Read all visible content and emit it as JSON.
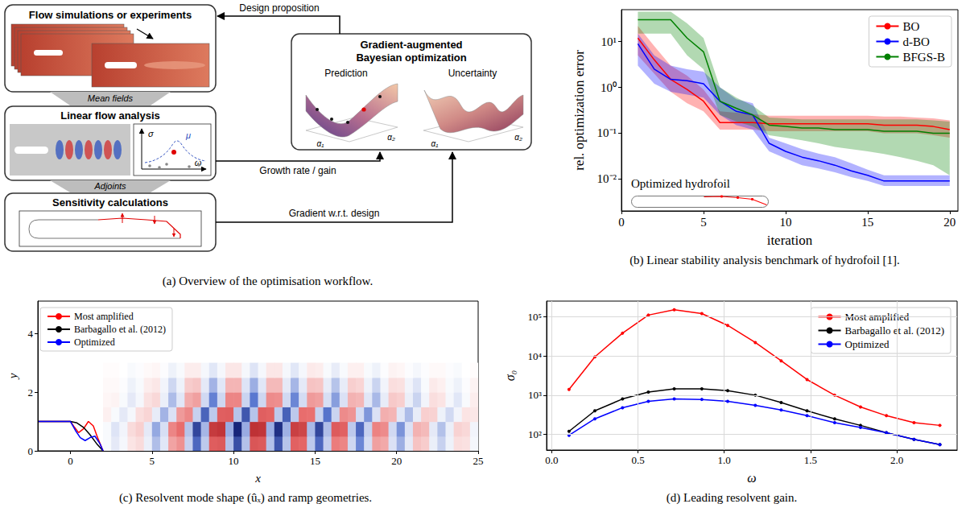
{
  "diagram": {
    "caption": "(a) Overview of the optimisation workflow.",
    "boxes": {
      "simulations": "Flow simulations or experiments",
      "linear": "Linear flow analysis",
      "sensitivity": "Sensitivity calculations",
      "optimization": "Gradient-augmented Bayesian optimization"
    },
    "transitions": {
      "mean_fields": "Mean fields",
      "adjoints": "Adjoints"
    },
    "arrows": {
      "design": "Design proposition",
      "growth": "Growth rate / gain",
      "gradient": "Gradient w.r.t. design"
    },
    "panels": {
      "prediction": "Prediction",
      "uncertainty": "Uncertainty"
    },
    "symbols": {
      "growth_rate": "σ",
      "frequency": "ω",
      "mean": "μ",
      "param1": "α₁",
      "param2": "α₂"
    }
  },
  "chart_data": [
    {
      "type": "line",
      "caption": "(b) Linear stability analysis benchmark of hydrofoil [1].",
      "x_label": "iteration",
      "y_label": "rel. optimization error",
      "annotation": "Optimized hydrofoil",
      "x": [
        1,
        2,
        3,
        4,
        5,
        6,
        7,
        8,
        9,
        10,
        11,
        12,
        13,
        14,
        15,
        16,
        17,
        18,
        19,
        20
      ],
      "series": [
        {
          "name": "BO",
          "color": "#ff0000",
          "values": [
            12,
            4,
            1.5,
            0.9,
            0.5,
            0.17,
            0.17,
            0.17,
            0.16,
            0.16,
            0.16,
            0.16,
            0.16,
            0.16,
            0.16,
            0.15,
            0.15,
            0.15,
            0.14,
            0.12
          ],
          "lower": [
            5,
            2,
            0.8,
            0.45,
            0.3,
            0.12,
            0.12,
            0.12,
            0.11,
            0.11,
            0.11,
            0.11,
            0.11,
            0.11,
            0.11,
            0.1,
            0.1,
            0.1,
            0.09,
            0.08
          ],
          "upper": [
            22,
            8,
            3,
            1.8,
            0.9,
            0.3,
            0.28,
            0.26,
            0.24,
            0.24,
            0.24,
            0.24,
            0.24,
            0.24,
            0.24,
            0.23,
            0.23,
            0.22,
            0.21,
            0.19
          ]
        },
        {
          "name": "d-BO",
          "color": "#0000ff",
          "values": [
            9,
            2.5,
            1.5,
            1.4,
            1.2,
            0.5,
            0.3,
            0.25,
            0.06,
            0.04,
            0.03,
            0.025,
            0.02,
            0.015,
            0.012,
            0.009,
            0.009,
            0.009,
            0.009,
            0.009
          ],
          "lower": [
            3,
            1.2,
            0.8,
            0.7,
            0.6,
            0.25,
            0.15,
            0.12,
            0.04,
            0.028,
            0.02,
            0.017,
            0.014,
            0.011,
            0.009,
            0.007,
            0.007,
            0.007,
            0.007,
            0.007
          ],
          "upper": [
            15,
            5,
            3,
            2.5,
            2.2,
            1,
            0.55,
            0.45,
            0.08,
            0.06,
            0.045,
            0.036,
            0.03,
            0.022,
            0.016,
            0.012,
            0.012,
            0.012,
            0.012,
            0.012
          ]
        },
        {
          "name": "BFGS-B",
          "color": "#008000",
          "values": [
            30,
            30,
            30,
            12,
            6,
            0.5,
            0.35,
            0.25,
            0.15,
            0.14,
            0.13,
            0.13,
            0.12,
            0.12,
            0.12,
            0.11,
            0.11,
            0.11,
            0.1,
            0.1
          ],
          "lower": [
            15,
            15,
            15,
            5,
            2.5,
            0.25,
            0.18,
            0.14,
            0.09,
            0.08,
            0.07,
            0.06,
            0.05,
            0.045,
            0.04,
            0.035,
            0.03,
            0.025,
            0.02,
            0.012
          ],
          "upper": [
            45,
            45,
            45,
            25,
            12,
            1,
            0.6,
            0.4,
            0.22,
            0.21,
            0.2,
            0.2,
            0.2,
            0.2,
            0.2,
            0.2,
            0.2,
            0.2,
            0.19,
            0.18
          ]
        }
      ],
      "xlim": [
        0,
        20.5
      ],
      "xticks": [
        0,
        5,
        10,
        15,
        20
      ],
      "ylim": [
        0.002,
        50
      ],
      "yticks": [
        {
          "value": 0.01,
          "label": "10⁻²"
        },
        {
          "value": 0.1,
          "label": "10⁻¹"
        },
        {
          "value": 1,
          "label": "10⁰"
        },
        {
          "value": 10,
          "label": "10¹"
        }
      ],
      "log": "y",
      "grid": false,
      "legend": "upper right",
      "marker": "none",
      "line_style": "solid"
    },
    {
      "type": "heatmap",
      "caption": "(c) Resolvent mode shape (ûₓ) and ramp geometries.",
      "x_label": "x",
      "y_label": "y",
      "cells": {
        "x": [
          2.25,
          2.75,
          3.25,
          3.75,
          4.25,
          4.75,
          5.25,
          5.75,
          6.25,
          6.75,
          7.25,
          7.75,
          8.25,
          8.75,
          9.25,
          9.75,
          10.25,
          10.75,
          11.25,
          11.75,
          12.25,
          12.75,
          13.25,
          13.75,
          14.25,
          14.75,
          15.25,
          15.75,
          16.25,
          16.75,
          17.25,
          17.75,
          18.25,
          18.75,
          19.25,
          19.75,
          20.25,
          20.75,
          21.25,
          21.75,
          22.25,
          22.75,
          23.25,
          23.75,
          24.25,
          24.75
        ],
        "y": [
          0.25,
          0.75,
          1.25,
          1.75,
          2.25,
          2.75
        ],
        "values": [
          [
            -0.02,
            -0.08,
            -0.03,
            0.09,
            0.12,
            -0.06,
            -0.24,
            -0.09,
            0.31,
            0.37,
            -0.17,
            -0.6,
            -0.2,
            0.57,
            0.59,
            -0.23,
            -0.75,
            -0.23,
            0.61,
            0.59,
            -0.23,
            -0.71,
            -0.22,
            0.55,
            0.53,
            -0.2,
            -0.6,
            -0.18,
            0.44,
            0.41,
            -0.15,
            -0.45,
            -0.13,
            0.32,
            0.29,
            -0.11,
            -0.3,
            -0.08,
            0.2,
            0.17,
            -0.06,
            -0.17,
            -0.05,
            0.11,
            0.1,
            -0.03
          ],
          [
            -0.02,
            -0.1,
            -0.04,
            0.12,
            0.16,
            -0.08,
            -0.32,
            -0.12,
            0.41,
            0.49,
            -0.22,
            -0.8,
            -0.27,
            0.76,
            0.79,
            -0.31,
            -1,
            -0.31,
            0.81,
            0.79,
            -0.3,
            -0.94,
            -0.29,
            0.73,
            0.7,
            -0.26,
            -0.8,
            -0.24,
            0.58,
            0.55,
            -0.2,
            -0.6,
            -0.17,
            0.42,
            0.39,
            -0.14,
            -0.4,
            -0.11,
            0.26,
            0.23,
            -0.08,
            -0.23,
            -0.06,
            0.15,
            0.13,
            -0.04
          ],
          [
            0.05,
            -0.02,
            -0.08,
            -0.03,
            0.11,
            0.14,
            -0.07,
            -0.28,
            -0.11,
            0.34,
            0.4,
            -0.17,
            -0.62,
            -0.2,
            0.56,
            0.57,
            -0.22,
            -0.7,
            -0.22,
            0.56,
            0.54,
            -0.2,
            -0.64,
            -0.2,
            0.49,
            0.48,
            -0.17,
            -0.53,
            -0.16,
            0.39,
            0.36,
            -0.13,
            -0.39,
            -0.11,
            0.27,
            0.25,
            -0.09,
            -0.25,
            -0.07,
            0.16,
            0.15,
            -0.05,
            -0.14,
            -0.04,
            0.09,
            0.08
          ],
          [
            0.03,
            0.04,
            -0.02,
            -0.08,
            -0.03,
            0.1,
            0.13,
            -0.06,
            -0.25,
            -0.09,
            0.28,
            0.32,
            -0.14,
            -0.47,
            -0.15,
            0.41,
            0.41,
            -0.16,
            -0.5,
            -0.15,
            0.39,
            0.38,
            -0.14,
            -0.45,
            -0.13,
            0.34,
            0.32,
            -0.12,
            -0.36,
            -0.11,
            0.26,
            0.24,
            -0.09,
            -0.26,
            -0.07,
            0.18,
            0.16,
            -0.06,
            -0.16,
            -0.04,
            0.11,
            0.09,
            -0.03,
            -0.09,
            -0.02,
            0.06
          ],
          [
            0.02,
            0.02,
            -0.01,
            -0.05,
            -0.02,
            0.06,
            0.08,
            -0.04,
            -0.15,
            -0.05,
            0.17,
            0.19,
            -0.08,
            -0.28,
            -0.09,
            0.25,
            0.25,
            -0.1,
            -0.3,
            -0.09,
            0.23,
            0.23,
            -0.08,
            -0.27,
            -0.08,
            0.2,
            0.19,
            -0.07,
            -0.22,
            -0.07,
            0.16,
            0.14,
            -0.05,
            -0.16,
            -0.04,
            0.11,
            0.1,
            -0.04,
            -0.1,
            -0.02,
            0.07,
            0.05,
            -0.02,
            -0.05,
            -0.01,
            0.04
          ],
          [
            0.01,
            0.01,
            0,
            -0.02,
            -0.01,
            0.02,
            0.03,
            -0.01,
            -0.05,
            -0.02,
            0.06,
            0.06,
            -0.03,
            -0.09,
            -0.03,
            0.08,
            0.08,
            -0.03,
            -0.1,
            -0.03,
            0.08,
            0.08,
            -0.03,
            -0.09,
            -0.03,
            0.07,
            0.06,
            -0.02,
            -0.07,
            -0.02,
            0.05,
            0.05,
            -0.02,
            -0.05,
            -0.01,
            0.04,
            0.03,
            -0.01,
            -0.03,
            -0.01,
            0.02,
            0.02,
            -0.01,
            -0.02,
            0,
            0.01
          ]
        ]
      },
      "color_range": [
        -1,
        1
      ],
      "series": [
        {
          "name": "Most amplified",
          "type": "line",
          "color": "#ff0000",
          "x": [
            -2,
            0,
            0.25,
            0.5,
            0.8,
            1.1,
            1.4,
            1.7,
            2.0
          ],
          "values": [
            1,
            1,
            0.8,
            0.62,
            0.75,
            1.0,
            0.85,
            0.4,
            0
          ]
        },
        {
          "name": "Barbagallo et al. (2012)",
          "type": "line",
          "color": "#000000",
          "x": [
            -2,
            0,
            0.4,
            0.8,
            1.2,
            1.6,
            2.0
          ],
          "values": [
            1,
            1,
            0.95,
            0.8,
            0.55,
            0.25,
            0
          ]
        },
        {
          "name": "Optimized",
          "type": "line",
          "color": "#0000ff",
          "x": [
            -2,
            0,
            0.3,
            0.6,
            0.9,
            1.2,
            1.5,
            1.8,
            2.0
          ],
          "values": [
            1,
            1,
            0.7,
            0.45,
            0.35,
            0.45,
            0.5,
            0.25,
            0
          ]
        }
      ],
      "xlim": [
        -2,
        25
      ],
      "xticks": [
        0,
        5,
        10,
        15,
        20,
        25
      ],
      "ylim": [
        0,
        5.1
      ],
      "yticks": [
        0,
        2,
        4
      ],
      "grid": false,
      "legend": "upper left",
      "marker": "none",
      "line_style": "solid"
    },
    {
      "type": "line",
      "caption": "(d) Leading resolvent gain.",
      "x_label": "ω",
      "y_label": "σ₀",
      "x": [
        0.1,
        0.25,
        0.41,
        0.56,
        0.71,
        0.87,
        1.02,
        1.18,
        1.33,
        1.48,
        1.64,
        1.79,
        1.94,
        2.1,
        2.25
      ],
      "series": [
        {
          "name": "Most amplified",
          "color": "#ff0000",
          "values": [
            1400,
            9500,
            38000,
            110000,
            150000,
            120000,
            60000,
            22000,
            7500,
            2500,
            1000,
            500,
            300,
            200,
            170
          ]
        },
        {
          "name": "Barbagallo et al. (2012)",
          "color": "#000000",
          "values": [
            120,
            400,
            800,
            1200,
            1450,
            1450,
            1300,
            1000,
            650,
            400,
            250,
            170,
            110,
            75,
            55
          ]
        },
        {
          "name": "Optimized",
          "color": "#0000ff",
          "values": [
            95,
            250,
            480,
            700,
            800,
            780,
            700,
            550,
            420,
            300,
            200,
            150,
            110,
            75,
            55
          ]
        }
      ],
      "xlim": [
        -0.03,
        2.35
      ],
      "xticks": [
        {
          "value": 0,
          "label": "0.0"
        },
        0.5,
        {
          "value": 1,
          "label": "1.0"
        },
        1.5,
        {
          "value": 2,
          "label": "2.0"
        }
      ],
      "ylim": [
        40,
        250000
      ],
      "yticks": [
        {
          "value": 100,
          "label": "10²"
        },
        {
          "value": 1000,
          "label": "10³"
        },
        {
          "value": 10000,
          "label": "10⁴"
        },
        {
          "value": 100000,
          "label": "10⁵"
        }
      ],
      "log": "y",
      "grid": true,
      "legend": "upper right",
      "marker": "circle",
      "line_style": "solid"
    }
  ]
}
